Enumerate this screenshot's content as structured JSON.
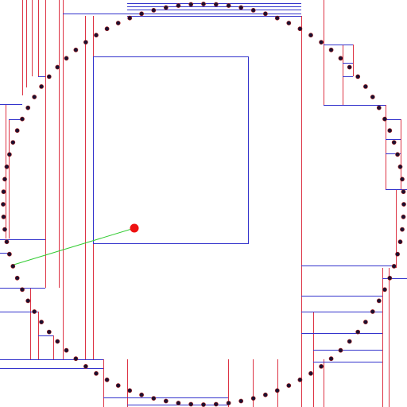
{
  "scene": {
    "colors": {
      "background": "#ffffff",
      "split_line_vertical": "#dd3344",
      "split_line_horizontal": "#3333cc",
      "query_box": "#3333cc",
      "point_fill": "#1a1030",
      "point_outline": "#aa2222",
      "query_point": "#ee1111",
      "nearest_link": "#33cc33"
    },
    "point_count": 100,
    "query_point_label": "",
    "nearest_index": 24
  }
}
